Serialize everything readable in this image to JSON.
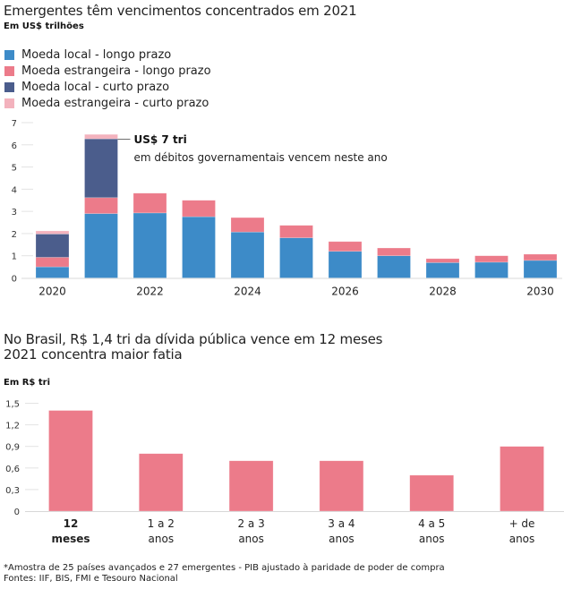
{
  "chart_data": [
    {
      "type": "bar",
      "stacked": true,
      "title": "Emergentes têm vencimentos concentrados em 2021",
      "subtitle": "Em US$ trilhões",
      "xlabel": "",
      "ylabel": "",
      "ylim": [
        0,
        7
      ],
      "yticks": [
        "0",
        "1",
        "2",
        "3",
        "4",
        "5",
        "6",
        "7"
      ],
      "ytick_values": [
        0,
        1,
        2,
        3,
        4,
        5,
        6,
        7
      ],
      "categories": [
        "2020",
        "2021",
        "2022",
        "2023",
        "2024",
        "2025",
        "2026",
        "2027",
        "2028",
        "2029",
        "2030"
      ],
      "xtick_labels": [
        "2020",
        "",
        "2022",
        "",
        "2024",
        "",
        "2026",
        "",
        "2028",
        "",
        "2030"
      ],
      "legend_position": "top-left",
      "grid": false,
      "series": [
        {
          "name": "Moeda local - longo prazo",
          "color": "#3d8bc8",
          "values": [
            0.5,
            2.9,
            2.93,
            2.76,
            2.07,
            1.81,
            1.2,
            1.0,
            0.69,
            0.71,
            0.79
          ]
        },
        {
          "name": "Moeda estrangeira - longo prazo",
          "color": "#ec7b8a",
          "values": [
            0.43,
            0.72,
            0.89,
            0.74,
            0.65,
            0.56,
            0.44,
            0.35,
            0.18,
            0.29,
            0.28
          ]
        },
        {
          "name": "Moeda local - curto prazo",
          "color": "#4b5d8c",
          "values": [
            1.05,
            2.65,
            0,
            0,
            0,
            0,
            0,
            0,
            0,
            0,
            0
          ]
        },
        {
          "name": "Moeda estrangeira - curto prazo",
          "color": "#f3b2bd",
          "values": [
            0.14,
            0.2,
            0,
            0,
            0,
            0,
            0,
            0,
            0,
            0,
            0
          ]
        }
      ],
      "annotation": {
        "category": "2021",
        "title": "US$ 7 tri",
        "text": "em débitos governamentais vencem neste ano"
      }
    },
    {
      "type": "bar",
      "title": "No Brasil, R$ 1,4 tri da dívida pública vence em 12 meses",
      "subtitle": "2021 concentra maior fatia",
      "unit_label": "Em R$ tri",
      "xlabel": "",
      "ylabel": "",
      "ylim": [
        0,
        1.5
      ],
      "yticks": [
        "0",
        "0,3",
        "0,6",
        "0,9",
        "1,2",
        "1,5"
      ],
      "ytick_values": [
        0,
        0.3,
        0.6,
        0.9,
        1.2,
        1.5
      ],
      "categories": [
        {
          "line1": "12",
          "line2": "meses",
          "bold": true
        },
        {
          "line1": "1 a 2",
          "line2": "anos",
          "bold": false
        },
        {
          "line1": "2 a 3",
          "line2": "anos",
          "bold": false
        },
        {
          "line1": "3 a 4",
          "line2": "anos",
          "bold": false
        },
        {
          "line1": "4 a 5",
          "line2": "anos",
          "bold": false
        },
        {
          "line1": "+ de",
          "line2": "anos",
          "bold": false
        }
      ],
      "values": [
        1.4,
        0.8,
        0.7,
        0.7,
        0.5,
        0.9
      ],
      "color": "#ec7b8a",
      "grid": false
    }
  ],
  "footer": {
    "note": "*Amostra de 25 países avançados e 27 emergentes - PIB ajustado à paridade de poder de compra",
    "sources": "Fontes: IIF, BIS, FMI e Tesouro Nacional"
  }
}
